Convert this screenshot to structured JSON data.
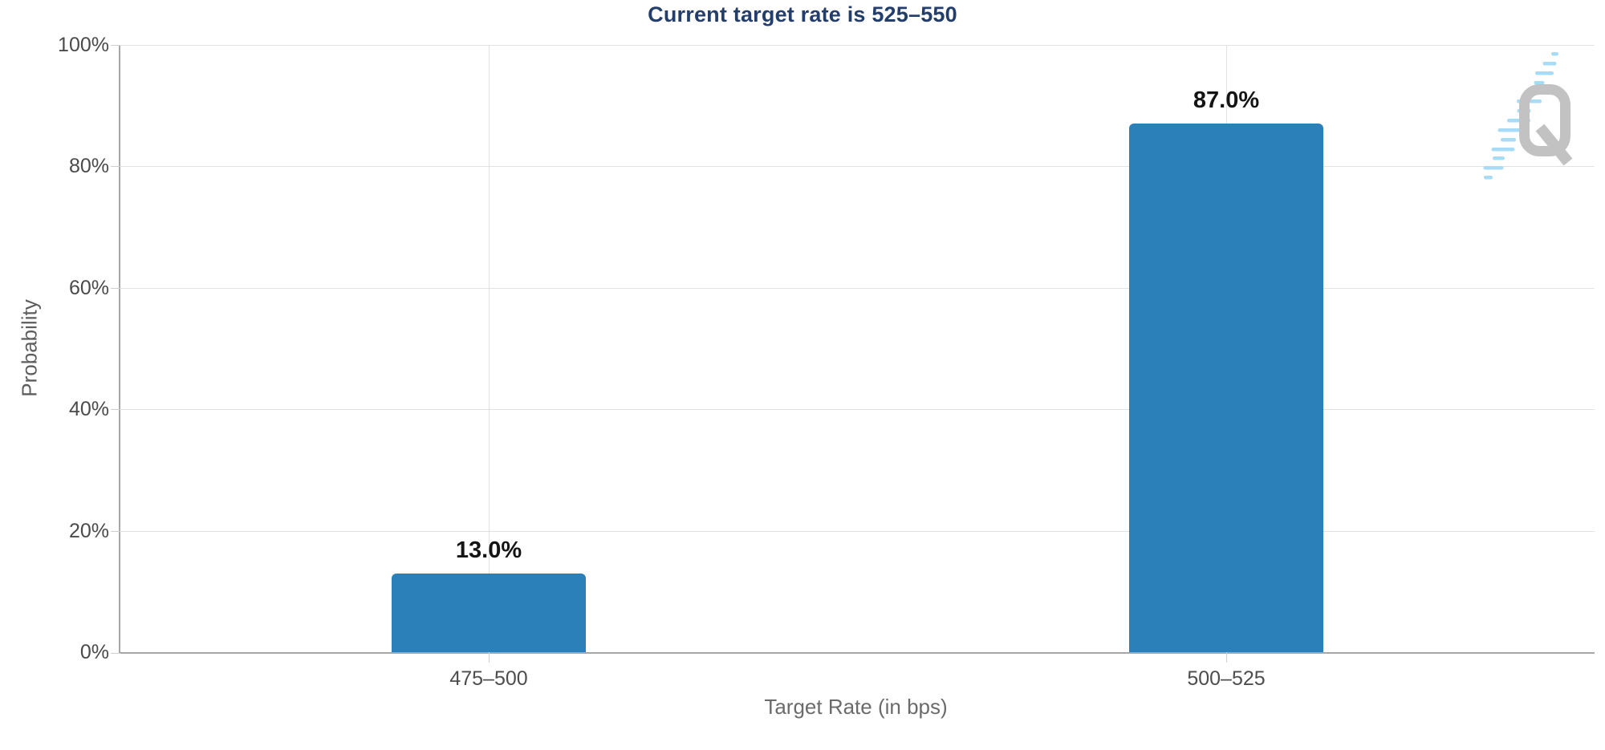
{
  "chart_data": {
    "type": "bar",
    "title": "Current target rate is 525–550",
    "categories": [
      "475–500",
      "500–525"
    ],
    "values": [
      13.0,
      87.0
    ],
    "value_labels": [
      "13.0%",
      "87.0%"
    ],
    "xlabel": "Target Rate (in bps)",
    "ylabel": "Probability",
    "ylim": [
      0,
      100
    ],
    "yticks": [
      "0%",
      "20%",
      "40%",
      "60%",
      "80%",
      "100%"
    ],
    "grid": true,
    "legend": "none",
    "bar_color": "#2b80b9"
  },
  "colors": {
    "title_text": "#243e6b",
    "bar": "#2b80b9",
    "tick_text": "#4a4a4a",
    "axis_title_text": "#6b6b6b",
    "grid_line": "#e2e2e2",
    "axis_line": "#a6a6a6",
    "logo_gray": "#c2c2c2",
    "logo_blue": "#a7dbf6"
  },
  "watermark": {
    "icon": "quikstrike-q-logo",
    "letter": "Q"
  }
}
